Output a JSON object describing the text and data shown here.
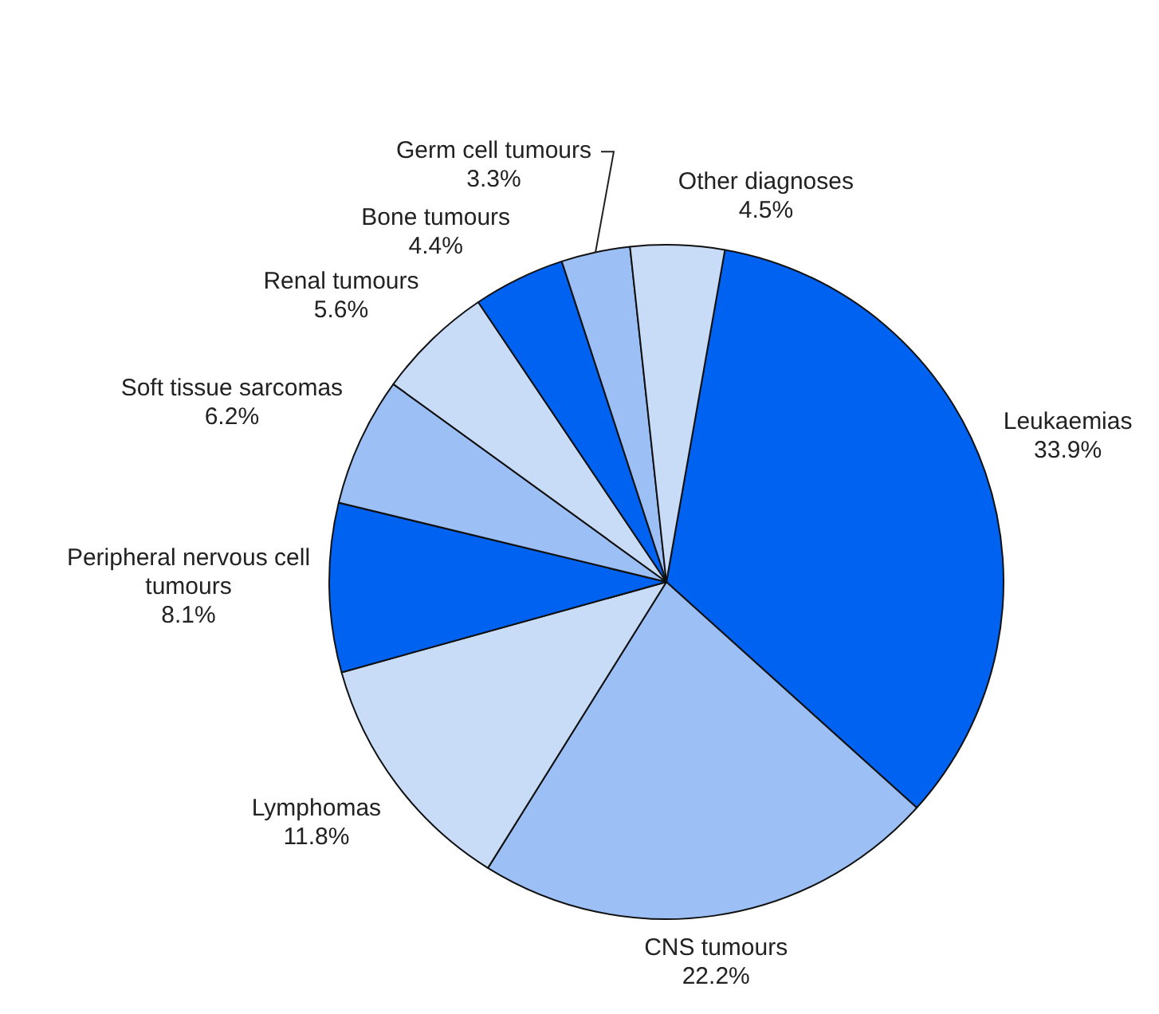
{
  "chart_data": {
    "type": "pie",
    "categories": [
      "Leukaemias",
      "CNS tumours",
      "Lymphomas",
      "Peripheral nervous cell tumours",
      "Soft tissue sarcomas",
      "Renal tumours",
      "Bone tumours",
      "Germ cell tumours",
      "Other diagnoses"
    ],
    "values": [
      33.9,
      22.2,
      11.8,
      8.1,
      6.2,
      5.6,
      4.4,
      3.3,
      4.5
    ],
    "value_labels": [
      "33.9%",
      "22.2%",
      "11.8%",
      "8.1%",
      "6.2%",
      "5.6%",
      "4.4%",
      "3.3%",
      "4.5%"
    ],
    "colors": [
      "#0062f0",
      "#9cbff5",
      "#c8dcf8",
      "#0062f0",
      "#9cbff5",
      "#c8dcf8",
      "#0062f0",
      "#9cbff5",
      "#c8dcf8"
    ],
    "legend": false
  }
}
